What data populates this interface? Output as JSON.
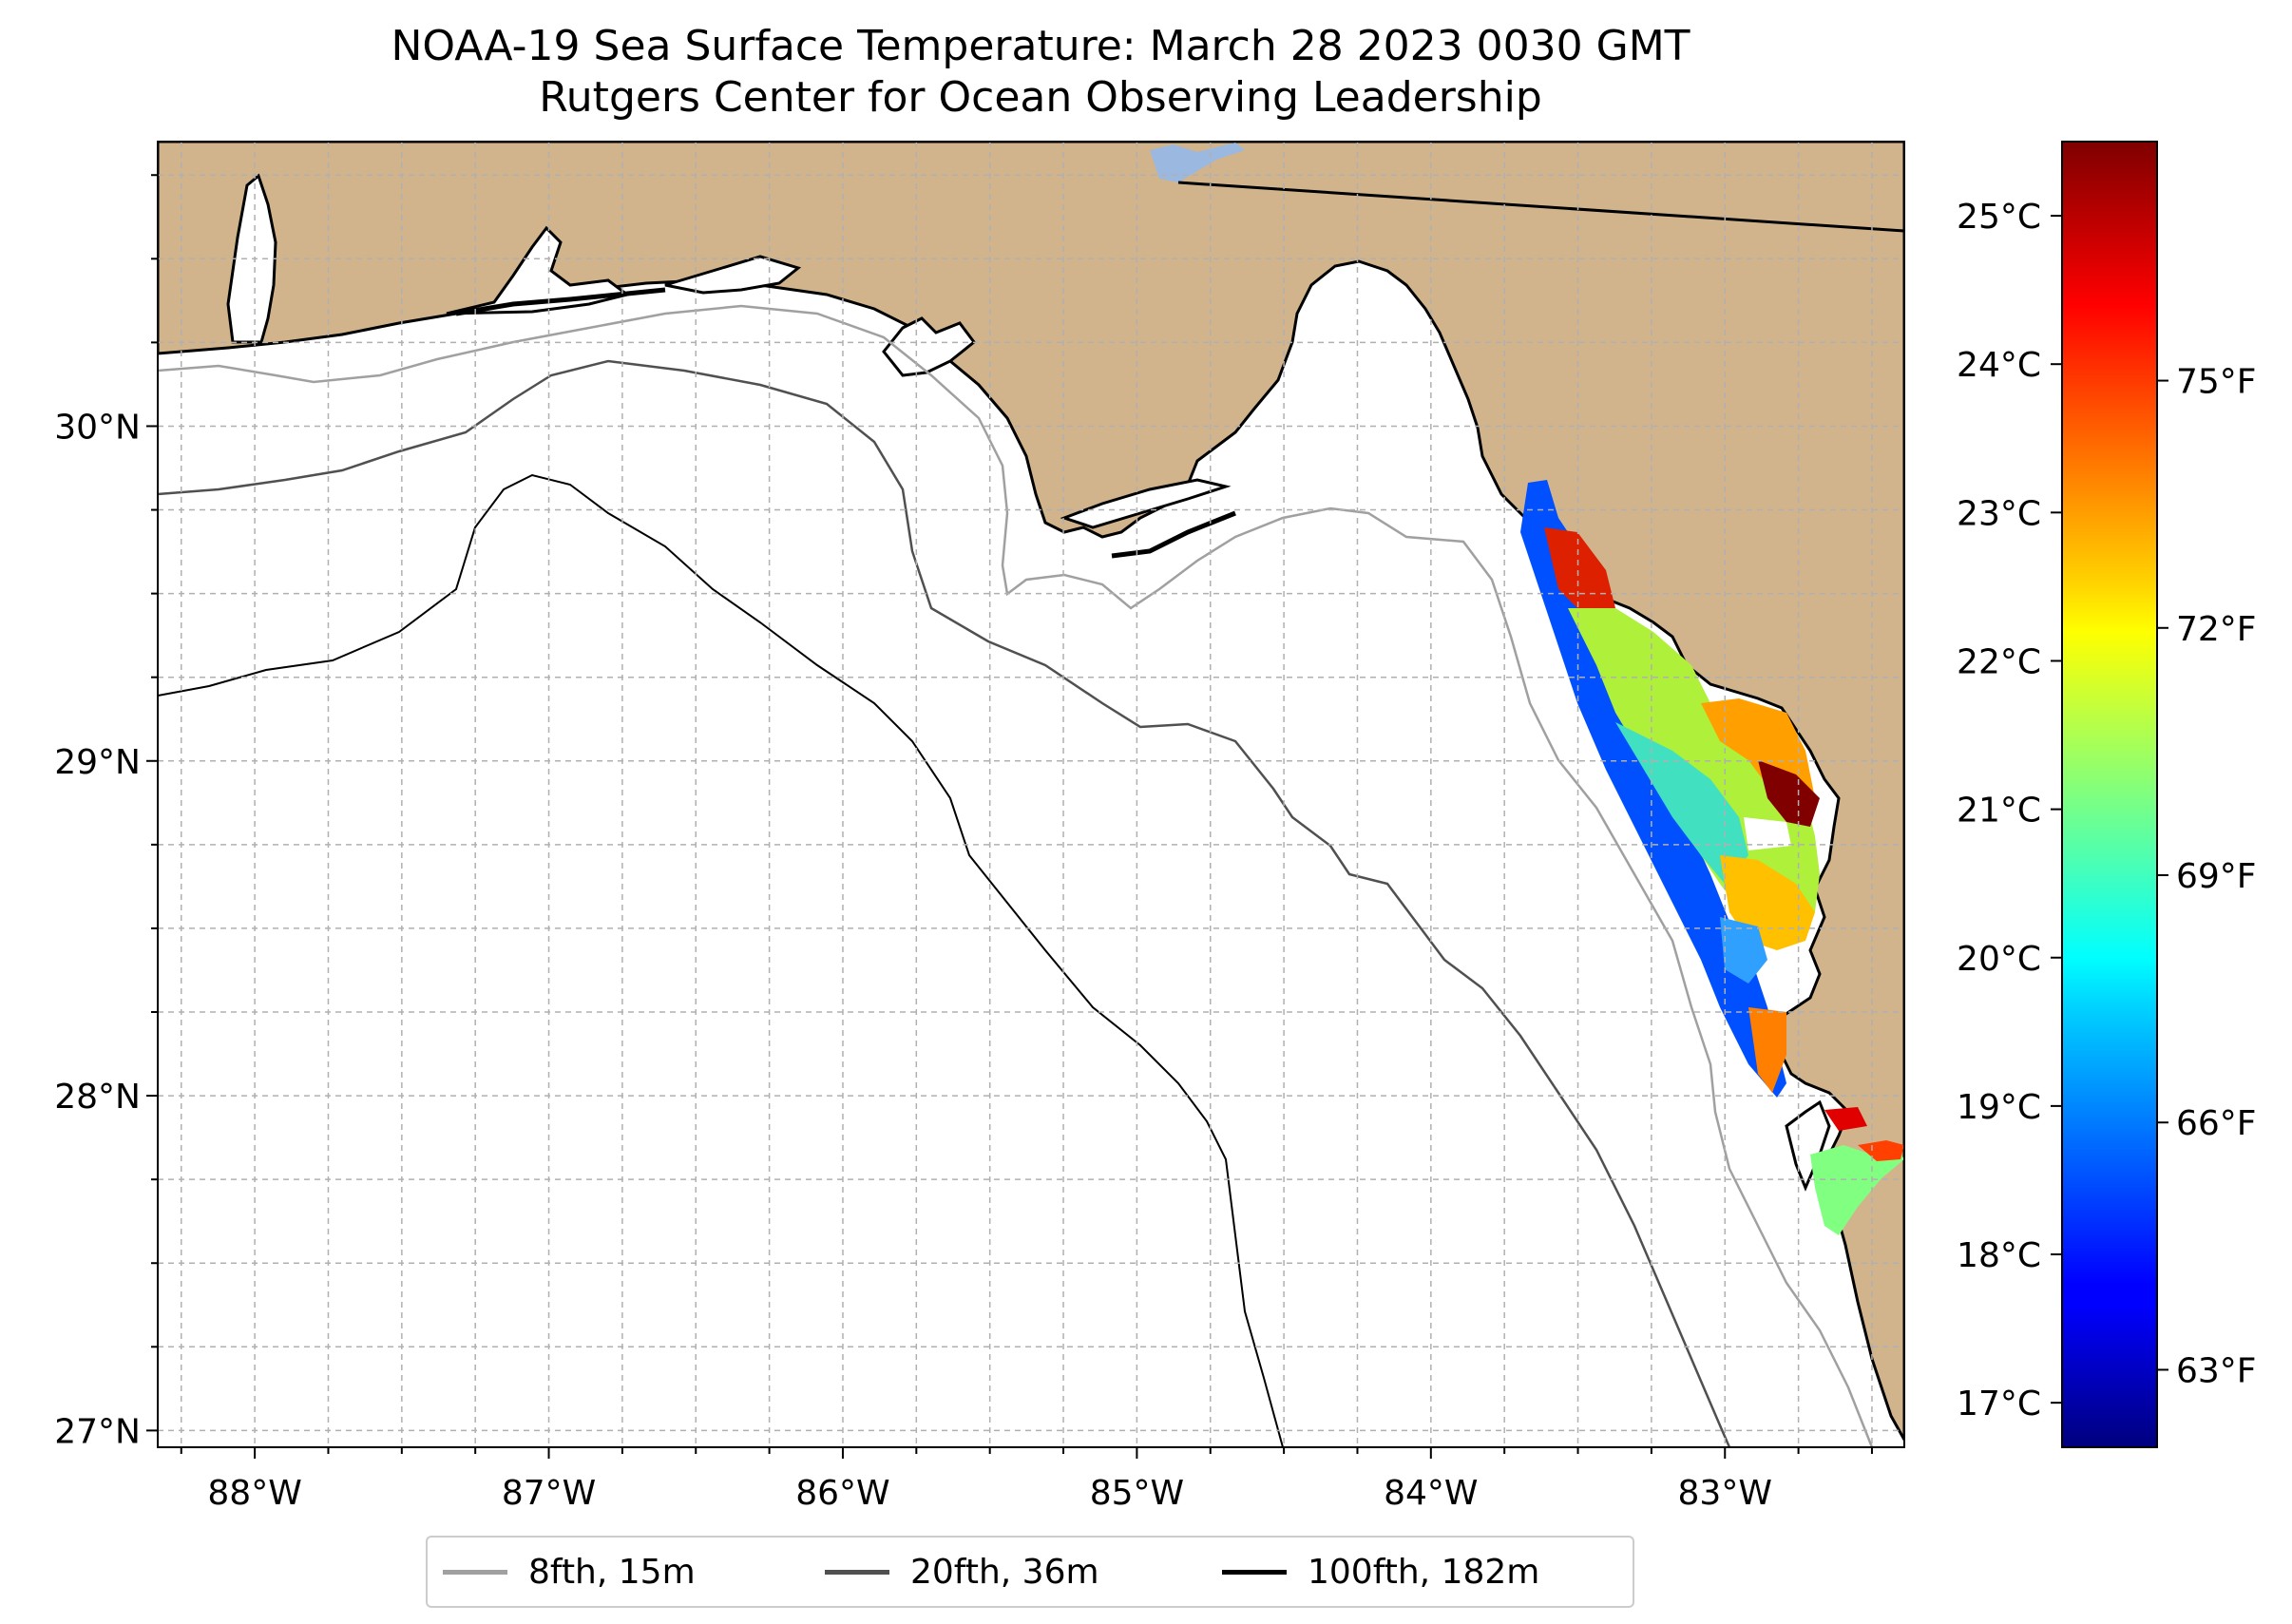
{
  "title": {
    "line1": "NOAA-19 Sea Surface Temperature: March 28 2023 0030 GMT",
    "line2": "Rutgers Center for Ocean Observing Leadership"
  },
  "map": {
    "lon_range": [
      -88.33,
      -82.39
    ],
    "lat_range": [
      26.95,
      30.85
    ],
    "lon_ticks": [
      {
        "value": -88,
        "label": "88°W"
      },
      {
        "value": -87,
        "label": "87°W"
      },
      {
        "value": -86,
        "label": "86°W"
      },
      {
        "value": -85,
        "label": "85°W"
      },
      {
        "value": -84,
        "label": "84°W"
      },
      {
        "value": -83,
        "label": "83°W"
      }
    ],
    "lat_ticks": [
      {
        "value": 30,
        "label": "30°N"
      },
      {
        "value": 29,
        "label": "29°N"
      },
      {
        "value": 28,
        "label": "28°N"
      },
      {
        "value": 27,
        "label": "27°N"
      }
    ],
    "grid": true,
    "land_color": "#d2b48c",
    "water_color": "#ffffff",
    "lake_color": "#9ab8e0"
  },
  "colorbar": {
    "colormap": "jet",
    "range_c": [
      16.7,
      25.5
    ],
    "celsius_ticks": [
      {
        "value": 25,
        "label": "25°C"
      },
      {
        "value": 24,
        "label": "24°C"
      },
      {
        "value": 23,
        "label": "23°C"
      },
      {
        "value": 22,
        "label": "22°C"
      },
      {
        "value": 21,
        "label": "21°C"
      },
      {
        "value": 20,
        "label": "20°C"
      },
      {
        "value": 19,
        "label": "19°C"
      },
      {
        "value": 18,
        "label": "18°C"
      },
      {
        "value": 17,
        "label": "17°C"
      }
    ],
    "fahrenheit_ticks": [
      {
        "value": 75,
        "label": "75°F"
      },
      {
        "value": 72,
        "label": "72°F"
      },
      {
        "value": 69,
        "label": "69°F"
      },
      {
        "value": 66,
        "label": "66°F"
      },
      {
        "value": 63,
        "label": "63°F"
      }
    ]
  },
  "legend": {
    "items": [
      {
        "label": "8fth, 15m",
        "color": "#a0a0a0"
      },
      {
        "label": "20fth, 36m",
        "color": "#505050"
      },
      {
        "label": "100fth, 182m",
        "color": "#000000"
      }
    ]
  }
}
